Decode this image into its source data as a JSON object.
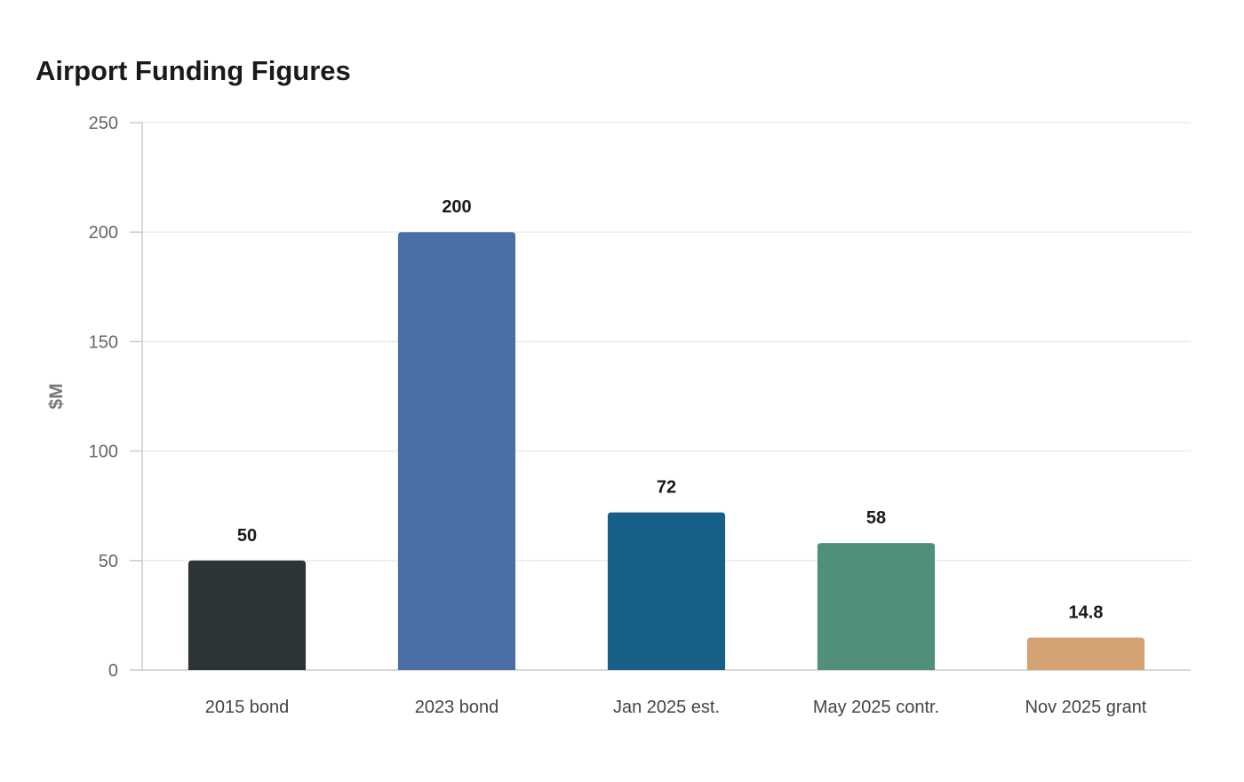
{
  "chart_data": {
    "type": "bar",
    "title": "Airport Funding Figures",
    "xlabel": "",
    "ylabel": "$M",
    "ylim": [
      0,
      250
    ],
    "yticks": [
      0,
      50,
      100,
      150,
      200,
      250
    ],
    "grid": true,
    "legend": "none",
    "categories": [
      "2015 bond",
      "2023 bond",
      "Jan 2025 est.",
      "May 2025 contr.",
      "Nov 2025 grant"
    ],
    "values": [
      50,
      200,
      72,
      58,
      14.8
    ],
    "colors": [
      "#2d3436",
      "#4a6fa5",
      "#166088",
      "#4f8f7b",
      "#d4a373"
    ]
  }
}
